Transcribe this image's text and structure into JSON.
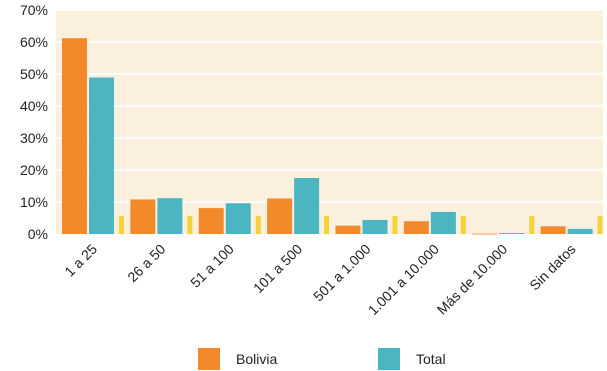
{
  "chart_data": {
    "type": "bar",
    "categories": [
      "1 a 25",
      "26 a 50",
      "51 a 100",
      "101 a 500",
      "501 a 1.000",
      "1.001 a 10.000",
      "Más de 10.000",
      "Sin datos"
    ],
    "series": [
      {
        "name": "Bolivia",
        "color": "#f28a2c",
        "values": [
          61.2,
          10.8,
          8.1,
          11.1,
          2.6,
          4.0,
          0.1,
          2.4
        ]
      },
      {
        "name": "Total",
        "color": "#4bb6c1",
        "values": [
          48.9,
          11.2,
          9.6,
          17.5,
          4.4,
          6.9,
          0.3,
          1.6
        ]
      }
    ],
    "yticks": [
      "0%",
      "10%",
      "20%",
      "30%",
      "40%",
      "50%",
      "60%",
      "70%"
    ],
    "ylim": [
      0,
      70
    ],
    "grid": true,
    "plot_background": "#fbf0de",
    "gridline_color": "#ffffff",
    "separator_color": "#f7d13a",
    "legend_position": "bottom"
  }
}
